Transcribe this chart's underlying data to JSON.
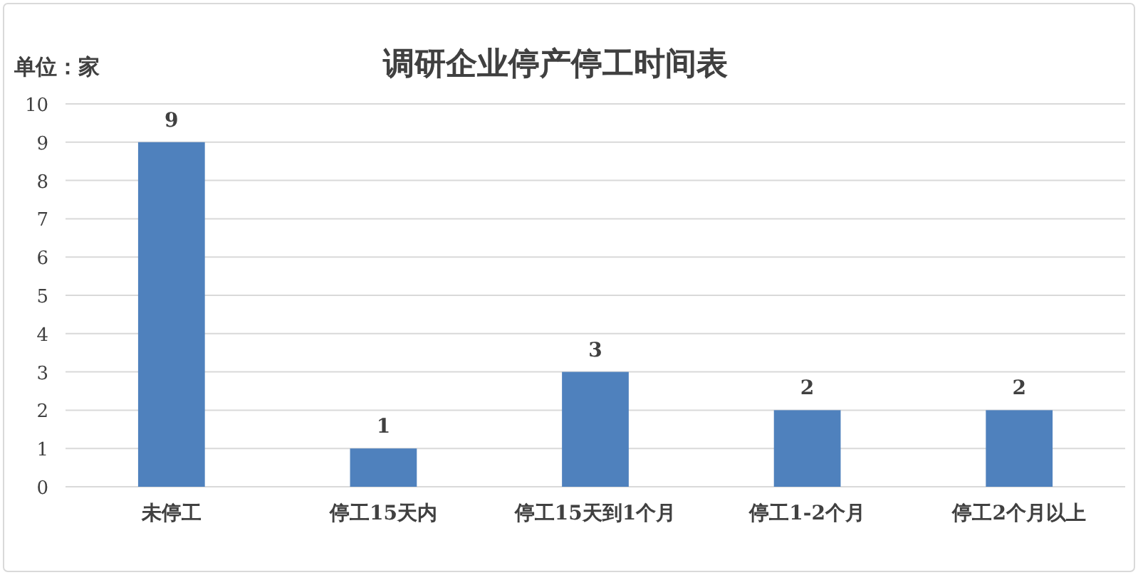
{
  "chart_data": {
    "type": "bar",
    "title": "调研企业停产停工时间表",
    "ylabel": "单位：家",
    "categories": [
      "未停工",
      "停工15天内",
      "停工15天到1个月",
      "停工1-2个月",
      "停工2个月以上"
    ],
    "values": [
      9,
      1,
      3,
      2,
      2
    ],
    "color": "#4f81bd",
    "ylim": [
      0,
      10
    ],
    "yticks": [
      0,
      1,
      2,
      3,
      4,
      5,
      6,
      7,
      8,
      9,
      10
    ],
    "grid": "y",
    "data_labels": true
  }
}
